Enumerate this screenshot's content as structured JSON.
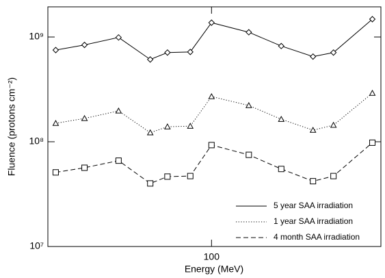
{
  "chart_data": {
    "type": "line",
    "xlabel": "Energy (MeV)",
    "ylabel": "Fluence (protons cm⁻²)",
    "x": [
      34.5,
      42,
      53,
      65.8,
      74,
      86.5,
      100,
      129,
      161,
      200,
      230,
      300
    ],
    "xscale": "log",
    "yscale": "log",
    "xlim": [
      32.7,
      318
    ],
    "xticks": [
      100
    ],
    "ylim": [
      10000000,
      1940000000
    ],
    "yticks": [
      {
        "value": 10000000,
        "label": "10⁷"
      },
      {
        "value": 100000000,
        "label": "10⁸"
      },
      {
        "value": 1000000000,
        "label": "10⁹"
      }
    ],
    "legend": "lower right",
    "series": [
      {
        "name": "5 year SAA irradiation",
        "color": "#000000",
        "dash": "solid",
        "marker": "diamond",
        "values": [
          750000000,
          840000000,
          990000000,
          610000000,
          710000000,
          720000000,
          1370000000,
          1110000000,
          820000000,
          650000000,
          710000000,
          1480000000
        ]
      },
      {
        "name": "1 year SAA irradiation",
        "color": "#000000",
        "dash": "dotted",
        "marker": "triangle",
        "values": [
          150000000,
          167000000,
          197000000,
          122000000,
          139000000,
          141000000,
          270000000,
          222000000,
          164000000,
          129000000,
          144000000,
          291000000
        ]
      },
      {
        "name": "4 month SAA irradiation",
        "color": "#000000",
        "dash": "dashed",
        "marker": "square",
        "values": [
          51000000,
          56500000,
          66000000,
          40000000,
          46500000,
          47000000,
          93000000,
          75000000,
          55000000,
          42000000,
          47000000,
          98000000
        ]
      }
    ]
  }
}
